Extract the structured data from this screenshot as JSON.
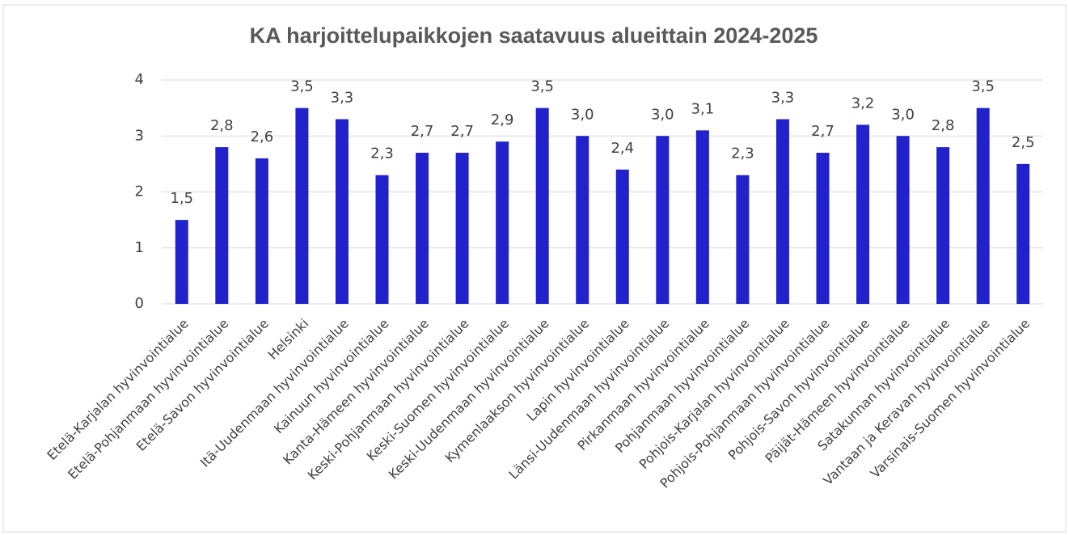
{
  "chart_data": {
    "type": "bar",
    "title": "KA harjoittelupaikkojen saatavuus alueittain 2024-2025",
    "categories": [
      "Etelä-Karjalan hyvinvointialue",
      "Etelä-Pohjanmaan hyvinvointialue",
      "Etelä-Savon hyvinvointialue",
      "Helsinki",
      "Itä-Uudenmaan hyvinvointialue",
      "Kainuun hyvinvointialue",
      "Kanta-Hämeen hyvinvointialue",
      "Keski-Pohjanmaan hyvinvointialue",
      "Keski-Suomen hyvinvointialue",
      "Keski-Uudenmaan hyvinvointialue",
      "Kymenlaakson hyvinvointialue",
      "Lapin hyvinvointialue",
      "Länsi-Uudenmaan hyvinvointialue",
      "Pirkanmaan hyvinvointialue",
      "Pohjanmaan hyvinvointialue",
      "Pohjois-Karjalan hyvinvointialue",
      "Pohjois-Pohjanmaan hyvinvointialue",
      "Pohjois-Savon hyvinvointialue",
      "Päijät-Hämeen hyvinvointialue",
      "Satakunnan hyvinvointialue",
      "Vantaan ja Keravan hyvinvointialue",
      "Varsinais-Suomen hyvinvointialue"
    ],
    "values": [
      1.5,
      2.8,
      2.6,
      3.5,
      3.3,
      2.3,
      2.7,
      2.7,
      2.9,
      3.5,
      3.0,
      2.4,
      3.0,
      3.1,
      2.3,
      3.3,
      2.7,
      3.2,
      3.0,
      2.8,
      3.5,
      2.5
    ],
    "value_labels": [
      "1,5",
      "2,8",
      "2,6",
      "3,5",
      "3,3",
      "2,3",
      "2,7",
      "2,7",
      "2,9",
      "3,5",
      "3,0",
      "2,4",
      "3,0",
      "3,1",
      "2,3",
      "3,3",
      "2,7",
      "3,2",
      "3,0",
      "2,8",
      "3,5",
      "2,5"
    ],
    "color": "#2222cc",
    "ylim": [
      0,
      4
    ],
    "yticks": [
      0,
      1,
      2,
      3,
      4
    ],
    "grid": true
  }
}
